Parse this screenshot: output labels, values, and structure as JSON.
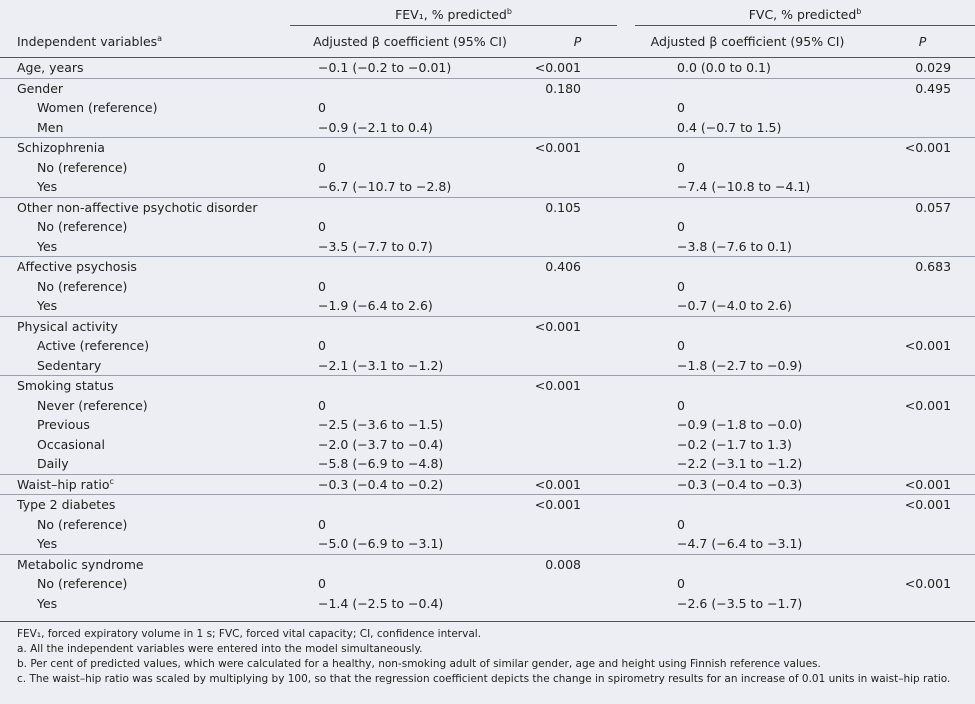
{
  "table": {
    "header": {
      "fev1": {
        "text": "FEV₁, % predicted",
        "sup": "b"
      },
      "fvc": {
        "text": "FVC, % predicted",
        "sup": "b"
      },
      "columns": [
        {
          "text": "Independent variables",
          "sup": "a"
        },
        {
          "text": "Adjusted β coefficient (95% CI)"
        },
        {
          "text": "P"
        },
        {
          "text": "Adjusted β coefficient (95% CI)"
        },
        {
          "text": "P"
        }
      ]
    },
    "groups": [
      {
        "rows": [
          {
            "label": "Age, years",
            "cells": [
              "−0.1 (−0.2 to −0.01)",
              "<0.001",
              "0.0 (0.0 to 0.1)",
              "0.029"
            ]
          }
        ]
      },
      {
        "rows": [
          {
            "label": "Gender",
            "cells": [
              null,
              "0.180",
              null,
              "0.495"
            ]
          },
          {
            "label": "Women (reference)",
            "cells": [
              "0",
              null,
              "0",
              null
            ]
          },
          {
            "label": "Men",
            "cells": [
              "−0.9 (−2.1 to 0.4)",
              null,
              "0.4 (−0.7 to 1.5)",
              null
            ]
          }
        ]
      },
      {
        "rows": [
          {
            "label": "Schizophrenia",
            "cells": [
              null,
              "<0.001",
              null,
              "<0.001"
            ]
          },
          {
            "label": "No (reference)",
            "cells": [
              "0",
              null,
              "0",
              null
            ]
          },
          {
            "label": "Yes",
            "cells": [
              "−6.7 (−10.7 to −2.8)",
              null,
              "−7.4 (−10.8 to −4.1)",
              null
            ]
          }
        ]
      },
      {
        "rows": [
          {
            "label": "Other non-affective psychotic disorder",
            "cells": [
              null,
              "0.105",
              null,
              "0.057"
            ]
          },
          {
            "label": "No (reference)",
            "cells": [
              "0",
              null,
              "0",
              null
            ]
          },
          {
            "label": "Yes",
            "cells": [
              "−3.5 (−7.7 to 0.7)",
              null,
              "−3.8 (−7.6 to 0.1)",
              null
            ]
          }
        ]
      },
      {
        "rows": [
          {
            "label": "Affective psychosis",
            "cells": [
              null,
              "0.406",
              null,
              "0.683"
            ]
          },
          {
            "label": "No (reference)",
            "cells": [
              "0",
              null,
              "0",
              null
            ]
          },
          {
            "label": "Yes",
            "cells": [
              "−1.9 (−6.4 to 2.6)",
              null,
              "−0.7 (−4.0 to 2.6)",
              null
            ]
          }
        ]
      },
      {
        "rows": [
          {
            "label": "Physical activity",
            "cells": [
              null,
              "<0.001",
              null,
              null
            ]
          },
          {
            "label": "Active (reference)",
            "cells": [
              "0",
              null,
              "0",
              "<0.001"
            ]
          },
          {
            "label": "Sedentary",
            "cells": [
              "−2.1 (−3.1 to −1.2)",
              null,
              "−1.8 (−2.7 to −0.9)",
              null
            ]
          }
        ]
      },
      {
        "rows": [
          {
            "label": "Smoking status",
            "cells": [
              null,
              "<0.001",
              null,
              null
            ]
          },
          {
            "label": "Never (reference)",
            "cells": [
              "0",
              null,
              "0",
              "<0.001"
            ]
          },
          {
            "label": "Previous",
            "cells": [
              "−2.5 (−3.6 to −1.5)",
              null,
              "−0.9 (−1.8 to −0.0)",
              null
            ]
          },
          {
            "label": "Occasional",
            "cells": [
              "−2.0 (−3.7 to −0.4)",
              null,
              "−0.2 (−1.7 to 1.3)",
              null
            ]
          },
          {
            "label": "Daily",
            "cells": [
              "−5.8 (−6.9 to −4.8)",
              null,
              "−2.2 (−3.1 to −1.2)",
              null
            ]
          }
        ]
      },
      {
        "rows": [
          {
            "label": "Waist–hip ratio",
            "sup": "c",
            "cells": [
              "−0.3 (−0.4 to −0.2)",
              "<0.001",
              "−0.3 (−0.4 to −0.3)",
              "<0.001"
            ]
          }
        ]
      },
      {
        "rows": [
          {
            "label": "Type 2 diabetes",
            "cells": [
              null,
              "<0.001",
              null,
              "<0.001"
            ]
          },
          {
            "label": "No (reference)",
            "cells": [
              "0",
              null,
              "0",
              null
            ]
          },
          {
            "label": "Yes",
            "cells": [
              "−5.0 (−6.9 to −3.1)",
              null,
              "−4.7 (−6.4 to −3.1)",
              null
            ]
          }
        ]
      },
      {
        "rows": [
          {
            "label": "Metabolic syndrome",
            "cells": [
              null,
              "0.008",
              null,
              null
            ]
          },
          {
            "label": "No (reference)",
            "cells": [
              "0",
              null,
              "0",
              "<0.001"
            ]
          },
          {
            "label": "Yes",
            "cells": [
              "−1.4 (−2.5 to −0.4)",
              null,
              "−2.6 (−3.5 to −1.7)",
              null
            ]
          }
        ]
      }
    ]
  },
  "footnotes": [
    "FEV₁, forced expiratory volume in 1 s; FVC, forced vital capacity; CI, confidence interval.",
    "a. All the independent variables were entered into the model simultaneously.",
    "b. Per cent of predicted values, which were calculated for a healthy, non-smoking adult of similar gender, age and height using Finnish reference values.",
    "c. The waist–hip ratio was scaled by multiplying by 100, so that the regression coefficient depicts the change in spirometry results for an increase of 0.01 units in waist–hip ratio."
  ]
}
